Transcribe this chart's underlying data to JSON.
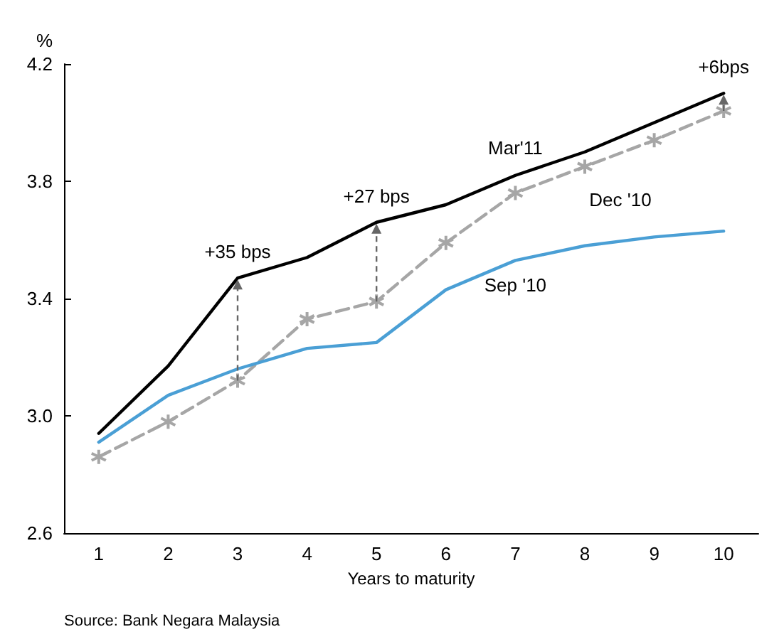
{
  "chart_data": {
    "type": "line",
    "ylabel": "%",
    "xlabel": "Years to maturity",
    "categories": [
      "1",
      "2",
      "3",
      "4",
      "5",
      "6",
      "7",
      "8",
      "9",
      "10"
    ],
    "series": [
      {
        "name": "Mar'11",
        "color": "#000000",
        "values": [
          2.94,
          3.17,
          3.47,
          3.54,
          3.66,
          3.72,
          3.82,
          3.9,
          4.0,
          4.1
        ],
        "marker": "none",
        "line_style": "solid"
      },
      {
        "name": "Dec '10",
        "color": "#a6a6a6",
        "values": [
          2.86,
          2.98,
          3.12,
          3.33,
          3.39,
          3.59,
          3.76,
          3.85,
          3.94,
          4.04
        ],
        "marker": "cross",
        "line_style": "dashed"
      },
      {
        "name": "Sep '10",
        "color": "#4a9fd5",
        "values": [
          2.91,
          3.07,
          3.16,
          3.23,
          3.25,
          3.43,
          3.53,
          3.58,
          3.61,
          3.63
        ],
        "marker": "none",
        "line_style": "solid"
      }
    ],
    "ylim": [
      2.6,
      4.2
    ],
    "yticks": [
      {
        "value": 2.6,
        "label": "2.6"
      },
      {
        "value": 3.0,
        "label": "3.0"
      },
      {
        "value": 3.4,
        "label": "3.4"
      },
      {
        "value": 3.8,
        "label": "3.8"
      },
      {
        "value": 4.2,
        "label": "4.2"
      }
    ],
    "annotations": [
      {
        "text": "+35 bps",
        "x": "3",
        "y": 3.47
      },
      {
        "text": "+27 bps",
        "x": "5",
        "y": 3.66
      },
      {
        "text": "+6bps",
        "x": "10",
        "y": 4.1
      },
      "Source: Bank Negara Malaysia"
    ],
    "grid": false,
    "legend": false
  }
}
